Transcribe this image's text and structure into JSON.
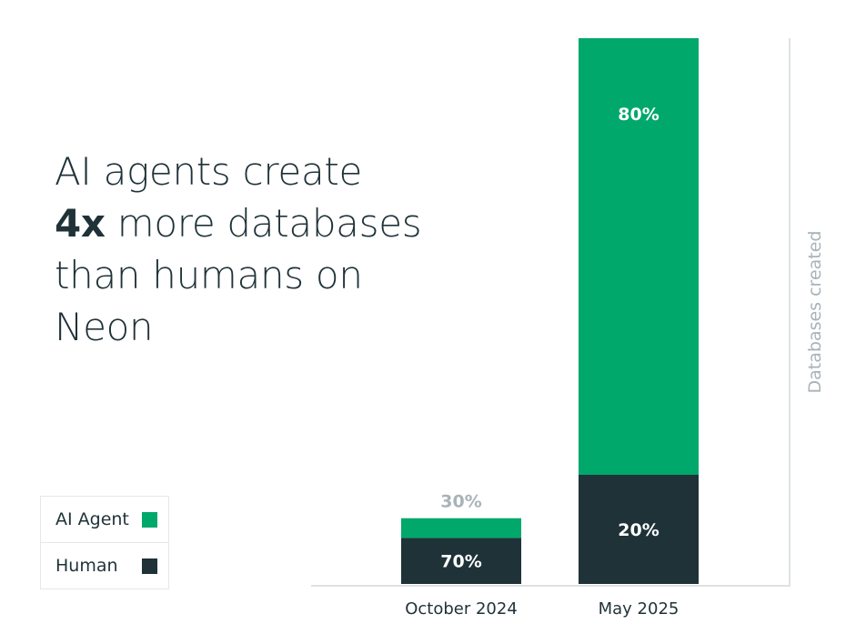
{
  "headline": {
    "line1": "AI agents create",
    "line2_emphasis": "4x",
    "line2_rest": " more databases",
    "line3": "than humans on",
    "line4": "Neon"
  },
  "legend": [
    {
      "label": "AI Agent",
      "color": "#00a86b"
    },
    {
      "label": "Human",
      "color": "#1e3238"
    }
  ],
  "colors": {
    "ai_agent": "#00a86b",
    "human": "#1e3238",
    "axis": "#dde2e5",
    "axis_label": "#a9b3b8",
    "muted_label": "#a9b3b8"
  },
  "chart_data": {
    "type": "bar",
    "stacked": true,
    "categories": [
      "October 2024",
      "May 2025"
    ],
    "series": [
      {
        "name": "Human",
        "values": [
          70,
          20
        ],
        "labels": [
          "70%",
          "20%"
        ]
      },
      {
        "name": "AI Agent",
        "values": [
          30,
          80
        ],
        "labels": [
          "30%",
          "80%"
        ]
      }
    ],
    "relative_totals": [
      1,
      8.3
    ],
    "ylabel": "Databases created",
    "xlabel": "",
    "legend_position": "bottom-left",
    "grid": false
  }
}
